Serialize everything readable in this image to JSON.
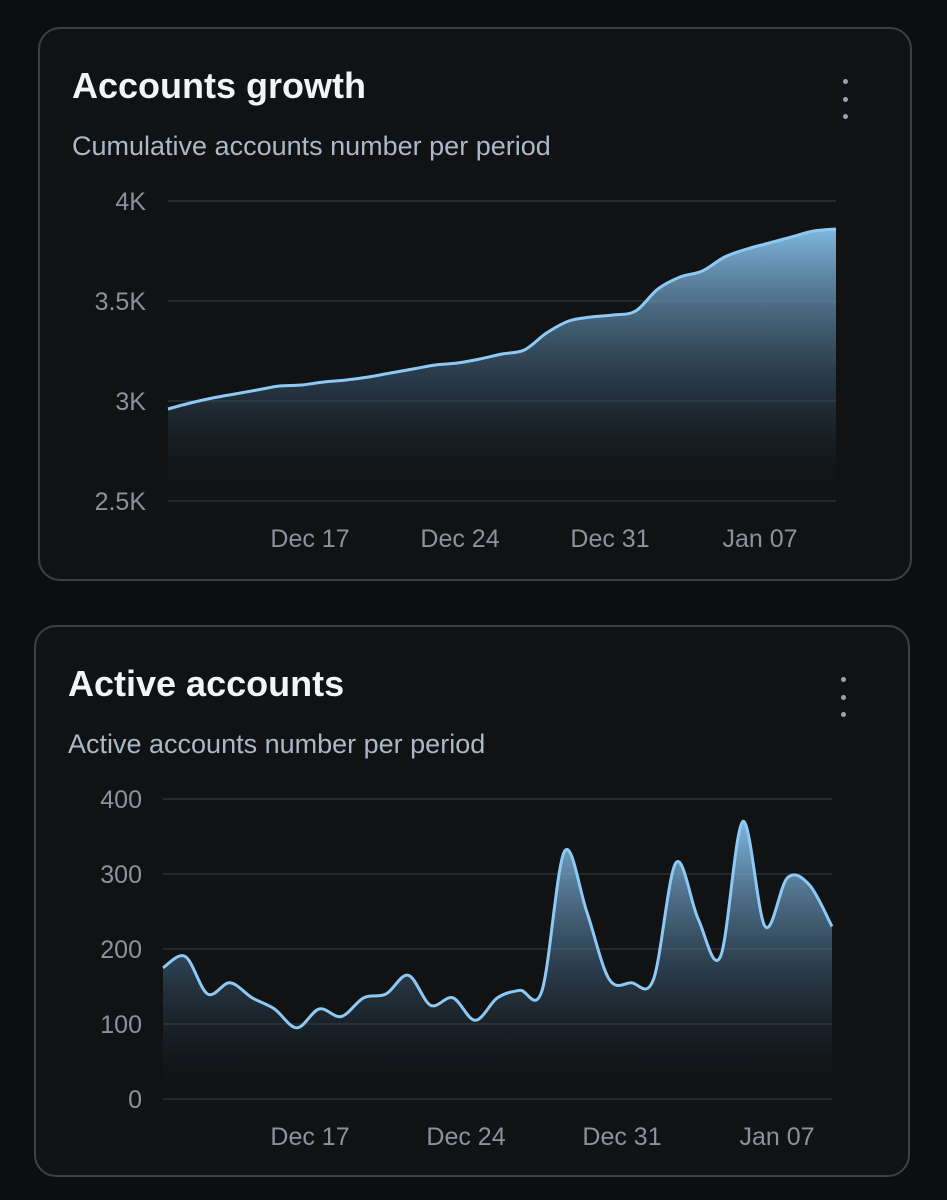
{
  "cards": [
    {
      "title": "Accounts growth",
      "subtitle": "Cumulative accounts number per period",
      "menu_icon": "more-vertical-icon"
    },
    {
      "title": "Active accounts",
      "subtitle": "Active accounts number per period",
      "menu_icon": "more-vertical-icon"
    }
  ],
  "colors": {
    "background": "#0d0e10",
    "card": "#101214",
    "border": "#3a4048",
    "line": "#8ccaf5",
    "fill_top": "#86bfe8",
    "grid": "#2c3137",
    "tick": "#8a939c"
  },
  "chart_data": [
    {
      "type": "area",
      "title": "Accounts growth",
      "subtitle": "Cumulative accounts number per period",
      "x_ticks": [
        "Dec 17",
        "Dec 24",
        "Dec 31",
        "Jan 07"
      ],
      "y_ticks": [
        "2.5K",
        "3K",
        "3.5K",
        "4K"
      ],
      "ylim": [
        2500,
        4000
      ],
      "grid": true,
      "x": [
        "Dec 11",
        "Dec 12",
        "Dec 13",
        "Dec 14",
        "Dec 15",
        "Dec 16",
        "Dec 17",
        "Dec 18",
        "Dec 19",
        "Dec 20",
        "Dec 21",
        "Dec 22",
        "Dec 23",
        "Dec 24",
        "Dec 25",
        "Dec 26",
        "Dec 27",
        "Dec 28",
        "Dec 29",
        "Dec 30",
        "Dec 31",
        "Jan 01",
        "Jan 02",
        "Jan 03",
        "Jan 04",
        "Jan 05",
        "Jan 06",
        "Jan 07",
        "Jan 08",
        "Jan 09",
        "Jan 10"
      ],
      "series": [
        {
          "values": [
            2960,
            2990,
            3015,
            3035,
            3055,
            3075,
            3080,
            3095,
            3105,
            3120,
            3140,
            3160,
            3180,
            3190,
            3210,
            3235,
            3255,
            3340,
            3400,
            3420,
            3430,
            3450,
            3560,
            3620,
            3650,
            3720,
            3760,
            3790,
            3820,
            3850,
            3860
          ]
        }
      ]
    },
    {
      "type": "area",
      "title": "Active accounts",
      "subtitle": "Active accounts number per period",
      "x_ticks": [
        "Dec 17",
        "Dec 24",
        "Dec 31",
        "Jan 07"
      ],
      "y_ticks": [
        "0",
        "100",
        "200",
        "300",
        "400"
      ],
      "ylim": [
        0,
        400
      ],
      "grid": true,
      "x": [
        "Dec 11",
        "Dec 12",
        "Dec 13",
        "Dec 14",
        "Dec 15",
        "Dec 16",
        "Dec 17",
        "Dec 18",
        "Dec 19",
        "Dec 20",
        "Dec 21",
        "Dec 22",
        "Dec 23",
        "Dec 24",
        "Dec 25",
        "Dec 26",
        "Dec 27",
        "Dec 28",
        "Dec 29",
        "Dec 30",
        "Dec 31",
        "Jan 01",
        "Jan 02",
        "Jan 03",
        "Jan 04",
        "Jan 05",
        "Jan 06",
        "Jan 07",
        "Jan 08",
        "Jan 09",
        "Jan 10"
      ],
      "series": [
        {
          "values": [
            175,
            190,
            140,
            155,
            135,
            120,
            95,
            120,
            110,
            135,
            140,
            165,
            125,
            135,
            105,
            135,
            145,
            145,
            330,
            250,
            160,
            155,
            160,
            315,
            240,
            190,
            370,
            230,
            295,
            285,
            230
          ]
        }
      ]
    }
  ]
}
